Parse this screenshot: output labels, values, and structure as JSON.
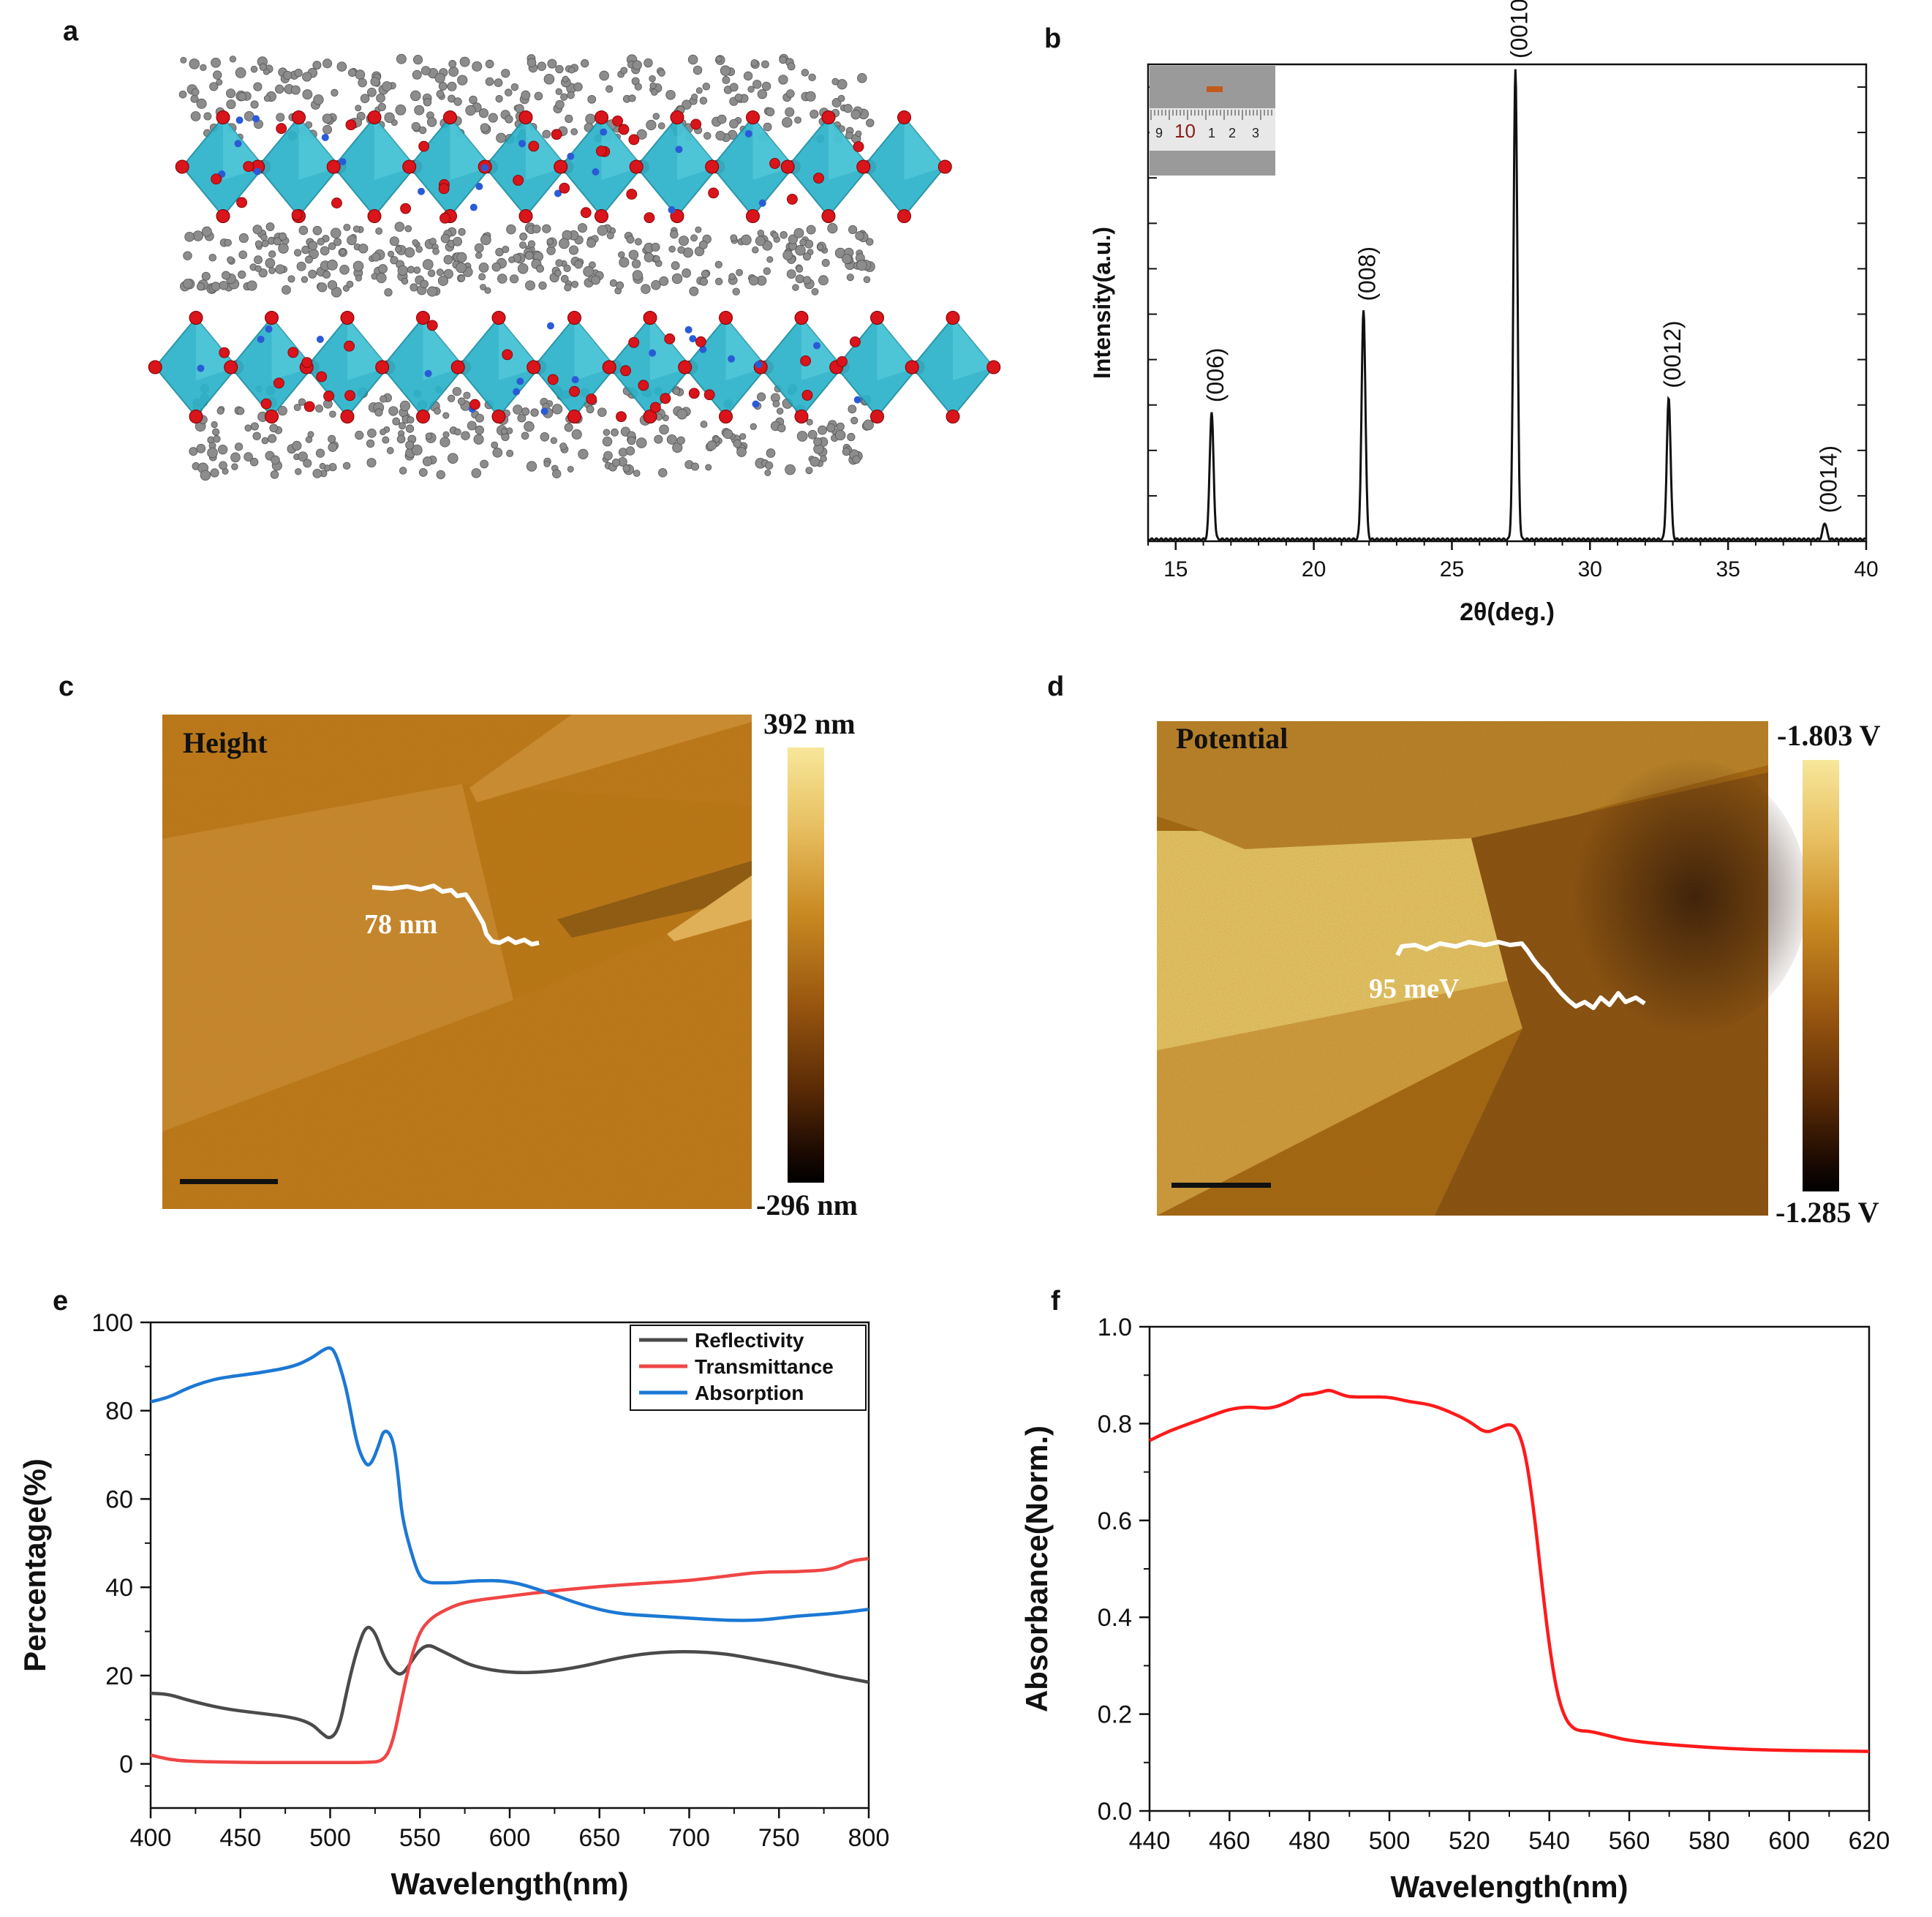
{
  "panels": {
    "a": {
      "letter": "a",
      "description": "layered perovskite crystal structure"
    },
    "b": {
      "letter": "b"
    },
    "c": {
      "letter": "c",
      "tag": "Height",
      "profile_label": "78 nm",
      "cbar_max": "392 nm",
      "cbar_min": "-296 nm"
    },
    "d": {
      "letter": "d",
      "tag": "Potential",
      "profile_label": "95 meV",
      "cbar_max": "-1.803 V",
      "cbar_min": "-1.285 V"
    },
    "e": {
      "letter": "e"
    },
    "f": {
      "letter": "f"
    }
  },
  "inset_ruler": {
    "ticks": [
      "9",
      "10",
      "1",
      "2",
      "3"
    ]
  },
  "colors": {
    "octahedra": "#2bb3c9",
    "oxygen": "#d9141b",
    "carbon": "#8c8c8c",
    "nitrogen": "#2a5bd7",
    "afm_light": "#f3d87a",
    "afm_mid": "#c6821a",
    "afm_dark": "#3a1a04",
    "reflectivity": "#4a4a4a",
    "transmittance": "#f04545",
    "absorption": "#1c78d4",
    "absorbance": "#ff1a1a"
  },
  "chart_data": [
    {
      "id": "b",
      "type": "line",
      "title": "",
      "xlabel": "2θ(deg.)",
      "ylabel": "Intensity(a.u.)",
      "xlim": [
        14,
        40
      ],
      "ylim": [
        0,
        1
      ],
      "xticks": [
        15,
        20,
        25,
        30,
        35,
        40
      ],
      "peaks": [
        {
          "x": 16.3,
          "y": 0.27,
          "label": "(006)"
        },
        {
          "x": 21.8,
          "y": 0.485,
          "label": "(008)"
        },
        {
          "x": 27.3,
          "y": 1.0,
          "label": "(0010)"
        },
        {
          "x": 32.85,
          "y": 0.3,
          "label": "(0012)"
        },
        {
          "x": 38.5,
          "y": 0.035,
          "label": "(0014)"
        }
      ]
    },
    {
      "id": "e",
      "type": "line",
      "xlabel": "Wavelength(nm)",
      "ylabel": "Percentage(%)",
      "xlim": [
        400,
        800
      ],
      "ylim": [
        -10,
        100
      ],
      "xticks": [
        400,
        450,
        500,
        550,
        600,
        650,
        700,
        750,
        800
      ],
      "yticks": [
        0,
        20,
        40,
        60,
        80,
        100
      ],
      "legend": "top-right",
      "series": [
        {
          "name": "Reflectivity",
          "color_key": "reflectivity",
          "x": [
            400,
            410,
            420,
            440,
            460,
            480,
            490,
            495,
            500,
            505,
            510,
            515,
            520,
            525,
            530,
            535,
            540,
            545,
            550,
            555,
            560,
            570,
            580,
            600,
            620,
            640,
            660,
            680,
            700,
            720,
            740,
            760,
            780,
            800
          ],
          "y": [
            16,
            15.8,
            14.5,
            12.5,
            11.5,
            10.5,
            9,
            7,
            5.5,
            8,
            18,
            26,
            31.5,
            30,
            24,
            21,
            20,
            23,
            26,
            27,
            26,
            24,
            22,
            20.6,
            20.8,
            22,
            24,
            25.2,
            25.5,
            25,
            23.5,
            22,
            20,
            18.5
          ]
        },
        {
          "name": "Transmittance",
          "color_key": "transmittance",
          "x": [
            400,
            410,
            420,
            440,
            460,
            480,
            500,
            520,
            530,
            535,
            540,
            545,
            550,
            555,
            560,
            570,
            580,
            600,
            620,
            640,
            660,
            680,
            700,
            720,
            740,
            760,
            780,
            790,
            800
          ],
          "y": [
            2,
            1,
            0.6,
            0.4,
            0.3,
            0.3,
            0.3,
            0.3,
            0.6,
            5,
            15,
            24,
            30,
            32.5,
            34,
            36,
            37,
            38,
            39,
            39.8,
            40.5,
            41,
            41.5,
            42.5,
            43.5,
            43.5,
            44,
            46,
            46.5
          ]
        },
        {
          "name": "Absorption",
          "color_key": "absorption",
          "x": [
            400,
            410,
            420,
            430,
            440,
            460,
            480,
            490,
            495,
            500,
            503,
            507,
            510,
            515,
            520,
            523,
            527,
            530,
            535,
            538,
            540,
            545,
            550,
            555,
            560,
            570,
            580,
            600,
            620,
            640,
            660,
            680,
            700,
            720,
            740,
            760,
            780,
            800
          ],
          "y": [
            82,
            83,
            85,
            86.5,
            87.5,
            88.5,
            90,
            92,
            93.5,
            94.5,
            93,
            88,
            83,
            72,
            67.5,
            68,
            72,
            76,
            74,
            65,
            56,
            48,
            42,
            41,
            41,
            41,
            41.5,
            41.5,
            39,
            36,
            34,
            33.5,
            33,
            32.5,
            32.5,
            33.5,
            34,
            35
          ]
        }
      ]
    },
    {
      "id": "f",
      "type": "line",
      "xlabel": "Wavelength(nm)",
      "ylabel": "Absorbance(Norm.)",
      "xlim": [
        440,
        620
      ],
      "ylim": [
        0,
        1
      ],
      "xticks": [
        440,
        460,
        480,
        500,
        520,
        540,
        560,
        580,
        600,
        620
      ],
      "yticks": [
        0.0,
        0.2,
        0.4,
        0.6,
        0.8,
        1.0
      ],
      "ytick_labels": [
        "0.0",
        "0.2",
        "0.4",
        "0.6",
        "0.8",
        "1.0"
      ],
      "series": [
        {
          "name": "Absorbance",
          "color_key": "absorbance",
          "x": [
            440,
            445,
            450,
            455,
            460,
            465,
            470,
            475,
            478,
            480,
            483,
            485,
            488,
            490,
            495,
            500,
            505,
            510,
            515,
            520,
            524,
            527,
            530,
            532,
            534,
            536,
            538,
            540,
            542,
            544,
            546,
            548,
            550,
            555,
            560,
            570,
            580,
            590,
            600,
            610,
            620
          ],
          "y": [
            0.765,
            0.785,
            0.8,
            0.815,
            0.83,
            0.835,
            0.83,
            0.845,
            0.86,
            0.86,
            0.865,
            0.87,
            0.86,
            0.855,
            0.855,
            0.855,
            0.845,
            0.84,
            0.825,
            0.805,
            0.78,
            0.79,
            0.8,
            0.79,
            0.74,
            0.63,
            0.48,
            0.34,
            0.24,
            0.19,
            0.17,
            0.165,
            0.165,
            0.155,
            0.145,
            0.137,
            0.131,
            0.127,
            0.125,
            0.124,
            0.123
          ]
        }
      ]
    }
  ]
}
